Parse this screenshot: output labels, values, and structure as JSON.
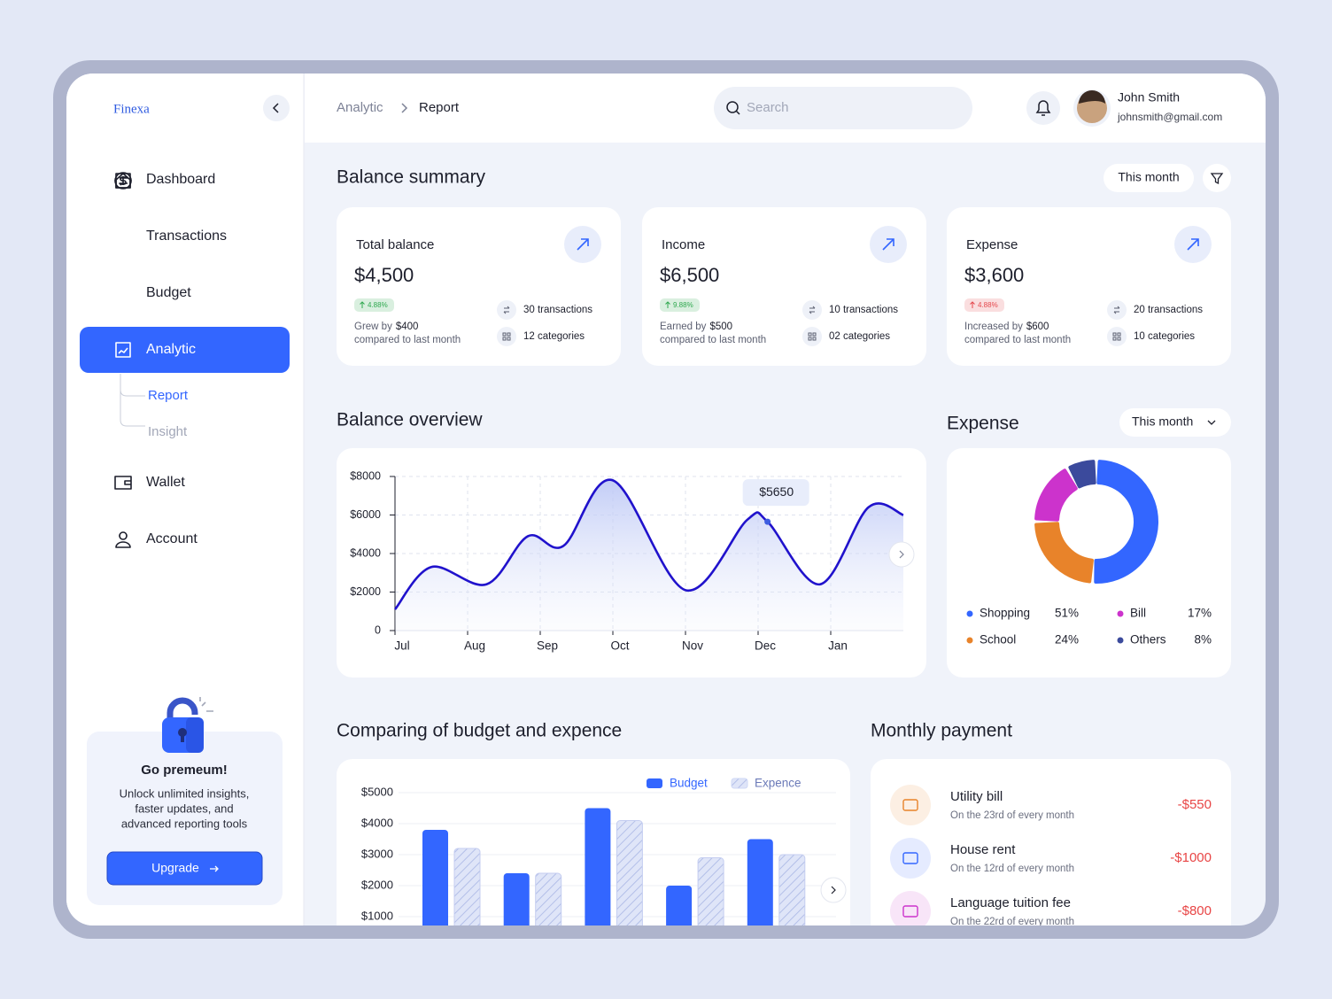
{
  "sidebar": {
    "brand": "Finexa",
    "nav": [
      "Dashboard",
      "Transactions",
      "Budget",
      "Analytic",
      "Wallet",
      "Account"
    ],
    "subnav": [
      "Report",
      "Insight"
    ],
    "promo": {
      "title": "Go premeum!",
      "lines": [
        "Unlock unlimited insights,",
        "faster updates, and",
        "advanced reporting tools"
      ],
      "button": "Upgrade"
    }
  },
  "header": {
    "breadcrumb": [
      "Analytic",
      "Report"
    ],
    "search": "Search",
    "user": {
      "name": "John Smith",
      "email": "johnsmith@gmail.com"
    }
  },
  "summary": {
    "title": "Balance summary",
    "period": "This month",
    "cards": [
      {
        "title": "Total balance",
        "amount": "$4,500",
        "change": "4.88%",
        "badge_color": "#2fa84f",
        "note_prefix": "Grew by",
        "note_amount": "$400",
        "note_suffix": "compared to last month",
        "transactions": "30 transactions",
        "categories": "12 categories"
      },
      {
        "title": "Income",
        "amount": "$6,500",
        "change": "9.88%",
        "badge_color": "#2fa84f",
        "note_prefix": "Earned by",
        "note_amount": "$500",
        "note_suffix": "compared to last month",
        "transactions": "10 transactions",
        "categories": "02 categories"
      },
      {
        "title": "Expense",
        "amount": "$3,600",
        "change": "4.88%",
        "badge_color": "#e5484d",
        "note_prefix": "Increased by",
        "note_amount": "$600",
        "note_suffix": "compared to last month",
        "transactions": "20 transactions",
        "categories": "10 categories"
      }
    ]
  },
  "payments": {
    "title": "Monthly payment",
    "items": [
      {
        "title": "Utility bill",
        "subtitle": "On the 23rd of every month",
        "amount": "-$550",
        "color": "#e8832a"
      },
      {
        "title": "House rent",
        "subtitle": "On the 12rd of every month",
        "amount": "-$1000",
        "color": "#3366ff"
      },
      {
        "title": "Language tuition fee",
        "subtitle": "On the 22rd of every month",
        "amount": "-$800",
        "color": "#cc33cc"
      }
    ]
  },
  "chart_data": [
    {
      "type": "line",
      "title": "Balance overview",
      "x": [
        0,
        0.5,
        1.26,
        1.83,
        2.32,
        3,
        4,
        4.85,
        5.13,
        5.85,
        6.52,
        7
      ],
      "series": [
        {
          "color": "#2012cc",
          "values": [
            1100,
            3300,
            2400,
            4900,
            4400,
            7800,
            2100,
            5750,
            5650,
            2400,
            6400,
            6000
          ],
          "value_labels": [
            null,
            null,
            null,
            null,
            null,
            null,
            null,
            null,
            "$5650",
            null,
            null,
            null
          ]
        }
      ],
      "xlim": [
        0,
        7
      ],
      "xticks": [
        {
          "value": 0,
          "label": "Jul"
        },
        {
          "value": 1,
          "label": "Aug"
        },
        {
          "value": 2,
          "label": "Sep"
        },
        {
          "value": 3,
          "label": "Oct"
        },
        {
          "value": 4,
          "label": "Nov"
        },
        {
          "value": 5,
          "label": "Dec"
        },
        {
          "value": 6,
          "label": "Jan"
        }
      ],
      "ylim": [
        0,
        8000
      ],
      "yticks": [
        0,
        {
          "value": 2000,
          "label": "$2000"
        },
        {
          "value": 4000,
          "label": "$4000"
        },
        {
          "value": 6000,
          "label": "$6000"
        },
        {
          "value": 8000,
          "label": "$8000"
        }
      ],
      "grid": true
    },
    {
      "type": "pie",
      "title": "Expense",
      "period": "This month",
      "categories": [
        "Shopping",
        "School",
        "Bill",
        "Others"
      ],
      "values": [
        51,
        24,
        17,
        8
      ],
      "value_labels": [
        "51%",
        "24%",
        "17%",
        "8%"
      ],
      "colors": [
        "#3366ff",
        "#e8832a",
        "#cc33cc",
        "#3b4a9c"
      ]
    },
    {
      "type": "bar",
      "title": "Comparing of budget and expence",
      "categories": [
        null,
        null,
        null,
        null,
        null
      ],
      "series": [
        {
          "name": "Budget",
          "color": "#3366ff",
          "values": [
            3800,
            2400,
            4500,
            2000,
            3500
          ]
        },
        {
          "name": "Expence",
          "color": "#cfd8f6",
          "pattern": "hatch",
          "values": [
            3200,
            2400,
            4100,
            2900,
            3000
          ]
        }
      ],
      "ylim": [
        0,
        5000
      ],
      "yticks": [
        {
          "value": 1000,
          "label": "$1000"
        },
        {
          "value": 2000,
          "label": "$2000"
        },
        {
          "value": 3000,
          "label": "$3000"
        },
        {
          "value": 4000,
          "label": "$4000"
        },
        {
          "value": 5000,
          "label": "$5000"
        }
      ],
      "grid": true
    }
  ]
}
